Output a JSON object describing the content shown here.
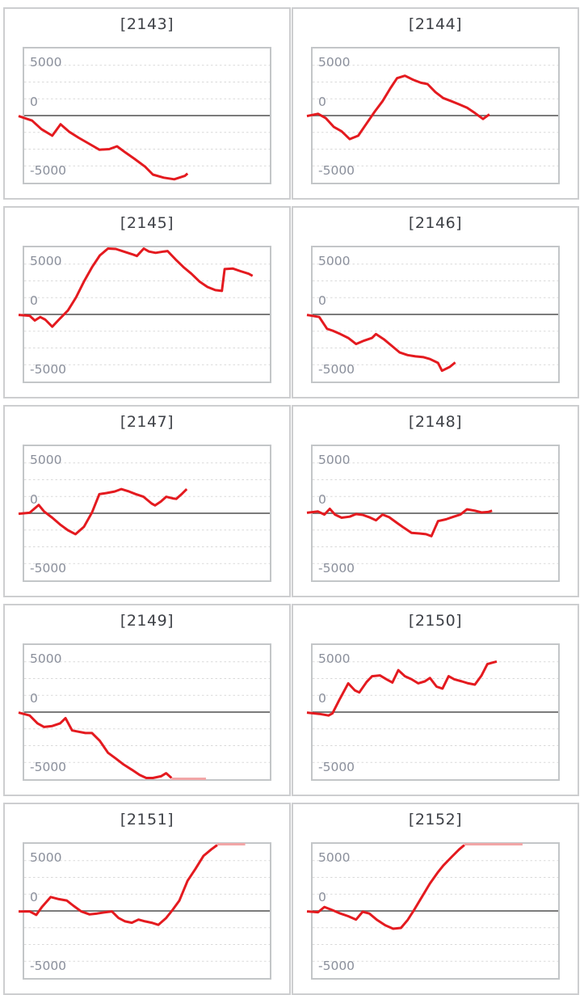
{
  "page": {
    "background": "#ffffff"
  },
  "colors": {
    "line": "#e41a1f",
    "clipped_line": "#f2a6a7",
    "zero_line": "#7b7b7b",
    "gridline": "#d9d9d9",
    "plot_border": "#c3c6c8",
    "cell_border": "#cdced0",
    "title_text": "#3e4147",
    "tick_text": "#8a8f9b"
  },
  "chart_data": {
    "type": "line",
    "grid": true,
    "legend": "none",
    "xlabel": "",
    "ylabel": "",
    "ylim": [
      -6667,
      6667
    ],
    "yticks": [
      5000,
      0,
      -5000
    ],
    "ytick_labels": [
      "5000",
      "0",
      "-5000"
    ],
    "grid_values": [
      5000,
      3333,
      1667,
      -1667,
      -3333,
      -5000
    ],
    "charts": [
      {
        "title": "[2143]",
        "clipped": null,
        "points": [
          [
            0,
            -50
          ],
          [
            0.032,
            -500
          ],
          [
            0.07,
            -1350
          ],
          [
            0.114,
            -2000
          ],
          [
            0.148,
            -860
          ],
          [
            0.184,
            -1620
          ],
          [
            0.222,
            -2210
          ],
          [
            0.265,
            -2810
          ],
          [
            0.306,
            -3390
          ],
          [
            0.346,
            -3330
          ],
          [
            0.378,
            -3050
          ],
          [
            0.411,
            -3650
          ],
          [
            0.449,
            -4300
          ],
          [
            0.492,
            -5080
          ],
          [
            0.524,
            -5860
          ],
          [
            0.568,
            -6170
          ],
          [
            0.611,
            -6330
          ],
          [
            0.654,
            -5990
          ],
          [
            0.665,
            -5760
          ]
        ]
      },
      {
        "title": "[2144]",
        "clipped": null,
        "points": [
          [
            0,
            -50
          ],
          [
            0.022,
            180
          ],
          [
            0.054,
            -260
          ],
          [
            0.086,
            -1120
          ],
          [
            0.118,
            -1560
          ],
          [
            0.151,
            -2340
          ],
          [
            0.186,
            -2000
          ],
          [
            0.22,
            -780
          ],
          [
            0.253,
            390
          ],
          [
            0.285,
            1430
          ],
          [
            0.317,
            2730
          ],
          [
            0.344,
            3720
          ],
          [
            0.376,
            3960
          ],
          [
            0.409,
            3570
          ],
          [
            0.441,
            3260
          ],
          [
            0.468,
            3130
          ],
          [
            0.5,
            2340
          ],
          [
            0.532,
            1740
          ],
          [
            0.565,
            1430
          ],
          [
            0.597,
            1120
          ],
          [
            0.629,
            780
          ],
          [
            0.661,
            260
          ],
          [
            0.694,
            -340
          ],
          [
            0.72,
            130
          ]
        ]
      },
      {
        "title": "[2145]",
        "clipped": null,
        "points": [
          [
            0,
            -50
          ],
          [
            0.022,
            -130
          ],
          [
            0.043,
            -600
          ],
          [
            0.065,
            -260
          ],
          [
            0.086,
            -520
          ],
          [
            0.114,
            -1220
          ],
          [
            0.146,
            -390
          ],
          [
            0.178,
            390
          ],
          [
            0.211,
            1690
          ],
          [
            0.243,
            3260
          ],
          [
            0.276,
            4690
          ],
          [
            0.308,
            5860
          ],
          [
            0.341,
            6590
          ],
          [
            0.373,
            6510
          ],
          [
            0.405,
            6250
          ],
          [
            0.438,
            5990
          ],
          [
            0.459,
            5810
          ],
          [
            0.487,
            6640
          ],
          [
            0.508,
            6250
          ],
          [
            0.535,
            6120
          ],
          [
            0.568,
            6250
          ],
          [
            0.584,
            6300
          ],
          [
            0.616,
            5470
          ],
          [
            0.649,
            4690
          ],
          [
            0.681,
            4040
          ],
          [
            0.714,
            3260
          ],
          [
            0.746,
            2730
          ],
          [
            0.778,
            2420
          ],
          [
            0.805,
            2340
          ],
          [
            0.816,
            4510
          ],
          [
            0.849,
            4560
          ],
          [
            0.881,
            4300
          ],
          [
            0.914,
            4040
          ],
          [
            0.93,
            3830
          ]
        ]
      },
      {
        "title": "[2146]",
        "clipped": null,
        "points": [
          [
            0,
            -50
          ],
          [
            0.027,
            -260
          ],
          [
            0.059,
            -1430
          ],
          [
            0.081,
            -1610
          ],
          [
            0.113,
            -1950
          ],
          [
            0.145,
            -2340
          ],
          [
            0.177,
            -2940
          ],
          [
            0.21,
            -2600
          ],
          [
            0.242,
            -2340
          ],
          [
            0.258,
            -1950
          ],
          [
            0.29,
            -2470
          ],
          [
            0.323,
            -3130
          ],
          [
            0.355,
            -3780
          ],
          [
            0.387,
            -4040
          ],
          [
            0.419,
            -4170
          ],
          [
            0.452,
            -4250
          ],
          [
            0.478,
            -4430
          ],
          [
            0.511,
            -4820
          ],
          [
            0.527,
            -5600
          ],
          [
            0.559,
            -5210
          ],
          [
            0.581,
            -4770
          ]
        ]
      },
      {
        "title": "[2147]",
        "clipped": null,
        "points": [
          [
            0,
            -50
          ],
          [
            0.022,
            50
          ],
          [
            0.059,
            830
          ],
          [
            0.081,
            180
          ],
          [
            0.114,
            -440
          ],
          [
            0.146,
            -1120
          ],
          [
            0.178,
            -1690
          ],
          [
            0.209,
            -2080
          ],
          [
            0.243,
            -1350
          ],
          [
            0.276,
            80
          ],
          [
            0.306,
            1900
          ],
          [
            0.335,
            2010
          ],
          [
            0.368,
            2160
          ],
          [
            0.395,
            2400
          ],
          [
            0.427,
            2160
          ],
          [
            0.454,
            1900
          ],
          [
            0.486,
            1640
          ],
          [
            0.519,
            960
          ],
          [
            0.533,
            780
          ],
          [
            0.557,
            1170
          ],
          [
            0.578,
            1640
          ],
          [
            0.605,
            1480
          ],
          [
            0.619,
            1430
          ],
          [
            0.643,
            1950
          ],
          [
            0.662,
            2400
          ]
        ]
      },
      {
        "title": "[2148]",
        "clipped": null,
        "points": [
          [
            0,
            50
          ],
          [
            0.022,
            180
          ],
          [
            0.048,
            -130
          ],
          [
            0.07,
            440
          ],
          [
            0.091,
            -130
          ],
          [
            0.118,
            -440
          ],
          [
            0.151,
            -340
          ],
          [
            0.177,
            -80
          ],
          [
            0.204,
            -160
          ],
          [
            0.231,
            -390
          ],
          [
            0.258,
            -700
          ],
          [
            0.285,
            -130
          ],
          [
            0.312,
            -390
          ],
          [
            0.344,
            -960
          ],
          [
            0.371,
            -1430
          ],
          [
            0.403,
            -1950
          ],
          [
            0.435,
            -2010
          ],
          [
            0.462,
            -2080
          ],
          [
            0.484,
            -2270
          ],
          [
            0.511,
            -780
          ],
          [
            0.543,
            -600
          ],
          [
            0.575,
            -340
          ],
          [
            0.602,
            -130
          ],
          [
            0.629,
            390
          ],
          [
            0.661,
            260
          ],
          [
            0.688,
            80
          ],
          [
            0.715,
            130
          ],
          [
            0.731,
            260
          ]
        ]
      },
      {
        "title": "[2149]",
        "clipped": {
          "edge": "bottom",
          "to": 0.74
        },
        "points": [
          [
            0,
            -50
          ],
          [
            0.022,
            -340
          ],
          [
            0.054,
            -1120
          ],
          [
            0.081,
            -1480
          ],
          [
            0.114,
            -1380
          ],
          [
            0.146,
            -1120
          ],
          [
            0.168,
            -600
          ],
          [
            0.195,
            -1820
          ],
          [
            0.222,
            -1950
          ],
          [
            0.249,
            -2080
          ],
          [
            0.276,
            -2080
          ],
          [
            0.308,
            -2860
          ],
          [
            0.341,
            -4040
          ],
          [
            0.373,
            -4610
          ],
          [
            0.405,
            -5210
          ],
          [
            0.438,
            -5730
          ],
          [
            0.47,
            -6250
          ],
          [
            0.497,
            -6590
          ],
          [
            0.524,
            -6640
          ],
          [
            0.557,
            -6380
          ],
          [
            0.578,
            -6070
          ],
          [
            0.6,
            -6590
          ]
        ]
      },
      {
        "title": "[2150]",
        "clipped": null,
        "points": [
          [
            0,
            -50
          ],
          [
            0.027,
            -180
          ],
          [
            0.065,
            -340
          ],
          [
            0.081,
            -130
          ],
          [
            0.108,
            1170
          ],
          [
            0.145,
            2860
          ],
          [
            0.172,
            2160
          ],
          [
            0.19,
            1950
          ],
          [
            0.22,
            3000
          ],
          [
            0.242,
            3570
          ],
          [
            0.274,
            3650
          ],
          [
            0.301,
            3260
          ],
          [
            0.325,
            2940
          ],
          [
            0.349,
            4170
          ],
          [
            0.376,
            3570
          ],
          [
            0.403,
            3260
          ],
          [
            0.43,
            2860
          ],
          [
            0.457,
            3050
          ],
          [
            0.478,
            3390
          ],
          [
            0.505,
            2530
          ],
          [
            0.529,
            2340
          ],
          [
            0.554,
            3570
          ],
          [
            0.577,
            3260
          ],
          [
            0.608,
            3050
          ],
          [
            0.634,
            2860
          ],
          [
            0.661,
            2730
          ],
          [
            0.688,
            3650
          ],
          [
            0.712,
            4770
          ],
          [
            0.737,
            4950
          ],
          [
            0.75,
            5030
          ]
        ]
      },
      {
        "title": "[2151]",
        "clipped": {
          "edge": "top",
          "to": 0.9
        },
        "points": [
          [
            0,
            -50
          ],
          [
            0.022,
            -50
          ],
          [
            0.049,
            -390
          ],
          [
            0.072,
            390
          ],
          [
            0.108,
            1380
          ],
          [
            0.141,
            1170
          ],
          [
            0.173,
            1040
          ],
          [
            0.2,
            520
          ],
          [
            0.232,
            -50
          ],
          [
            0.265,
            -340
          ],
          [
            0.297,
            -260
          ],
          [
            0.33,
            -130
          ],
          [
            0.357,
            -50
          ],
          [
            0.384,
            -700
          ],
          [
            0.411,
            -1040
          ],
          [
            0.438,
            -1170
          ],
          [
            0.465,
            -860
          ],
          [
            0.492,
            -1040
          ],
          [
            0.519,
            -1170
          ],
          [
            0.546,
            -1380
          ],
          [
            0.578,
            -700
          ],
          [
            0.605,
            130
          ],
          [
            0.632,
            1040
          ],
          [
            0.665,
            3000
          ],
          [
            0.697,
            4170
          ],
          [
            0.73,
            5470
          ],
          [
            0.762,
            6120
          ],
          [
            0.786,
            6590
          ]
        ]
      },
      {
        "title": "[2152]",
        "clipped": {
          "edge": "top",
          "to": 0.855
        },
        "points": [
          [
            0,
            -50
          ],
          [
            0.022,
            -130
          ],
          [
            0.048,
            390
          ],
          [
            0.081,
            80
          ],
          [
            0.113,
            -260
          ],
          [
            0.145,
            -520
          ],
          [
            0.177,
            -860
          ],
          [
            0.204,
            -80
          ],
          [
            0.231,
            -260
          ],
          [
            0.263,
            -910
          ],
          [
            0.296,
            -1430
          ],
          [
            0.328,
            -1770
          ],
          [
            0.36,
            -1690
          ],
          [
            0.387,
            -910
          ],
          [
            0.414,
            130
          ],
          [
            0.446,
            1430
          ],
          [
            0.478,
            2730
          ],
          [
            0.511,
            3860
          ],
          [
            0.532,
            4510
          ],
          [
            0.565,
            5340
          ],
          [
            0.597,
            6120
          ],
          [
            0.618,
            6640
          ]
        ]
      }
    ]
  }
}
